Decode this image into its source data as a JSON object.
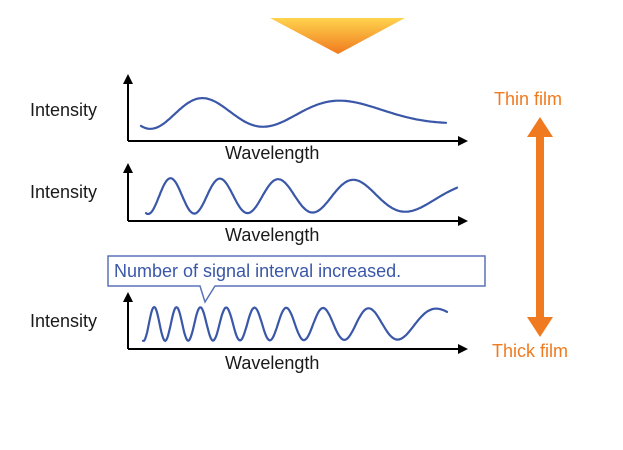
{
  "colors": {
    "wave": "#3a57a8",
    "axis": "#000000",
    "accent_orange": "#f07a1f",
    "triangle_top": "#ffd34d",
    "triangle_bottom": "#f07a1f",
    "callout_border": "#5a72b8"
  },
  "panels": [
    {
      "y_label": "Intensity",
      "x_label": "Wavelength"
    },
    {
      "y_label": "Intensity",
      "x_label": "Wavelength"
    },
    {
      "y_label": "Intensity",
      "x_label": "Wavelength"
    }
  ],
  "callout": {
    "text": "Number of signal interval increased."
  },
  "scale": {
    "top_label": "Thin film",
    "bottom_label": "Thick film"
  }
}
